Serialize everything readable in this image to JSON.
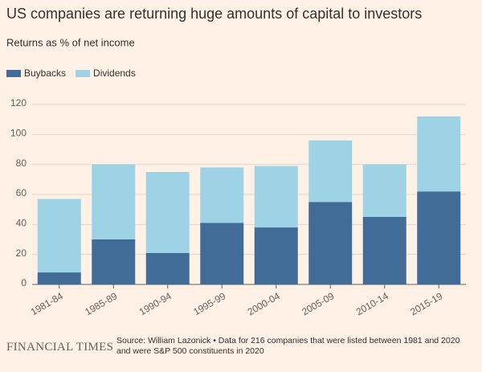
{
  "chart_data": {
    "type": "stacked-bar",
    "title": "US companies are returning huge amounts of capital to investors",
    "subtitle": "Returns as % of net income",
    "categories": [
      "1981-84",
      "1985-89",
      "1990-94",
      "1995-99",
      "2000-04",
      "2005-09",
      "2010-14",
      "2015-19"
    ],
    "series": [
      {
        "name": "Buybacks",
        "color": "#416c98",
        "values": [
          8,
          30,
          21,
          41,
          38,
          55,
          45,
          62
        ]
      },
      {
        "name": "Dividends",
        "color": "#9dd3e4",
        "values": [
          49,
          50,
          54,
          37,
          41,
          41,
          35,
          50
        ]
      }
    ],
    "ylim": [
      0,
      120
    ],
    "yticks": [
      0,
      20,
      40,
      60,
      80,
      100,
      120
    ],
    "grid": true,
    "legend": "top-left",
    "source": "Source: William Lazonick • Data for 216 companies that were listed between 1981 and 2020 and were S&P 500 constituents in 2020",
    "brand": "FINANCIAL TIMES"
  }
}
